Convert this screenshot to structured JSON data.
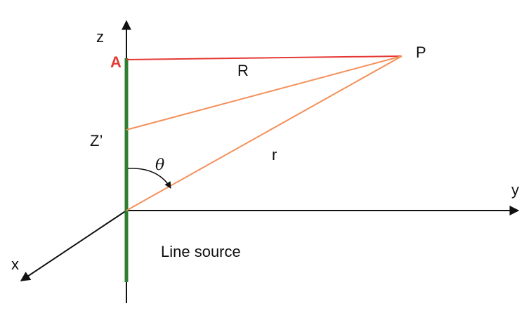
{
  "labels": {
    "z_axis": "z",
    "y_axis": "y",
    "x_axis": "x",
    "point_a": "A",
    "point_p": "P",
    "z_prime": "Z’",
    "distance_big_r": "R",
    "distance_r": "r",
    "angle": "θ",
    "line_source": "Line source"
  },
  "colors": {
    "axis": "#111111",
    "line_source": "#2e7d32",
    "line_ap": "#e53935",
    "ray": "#f4905a",
    "point_a_label": "#e53935"
  }
}
